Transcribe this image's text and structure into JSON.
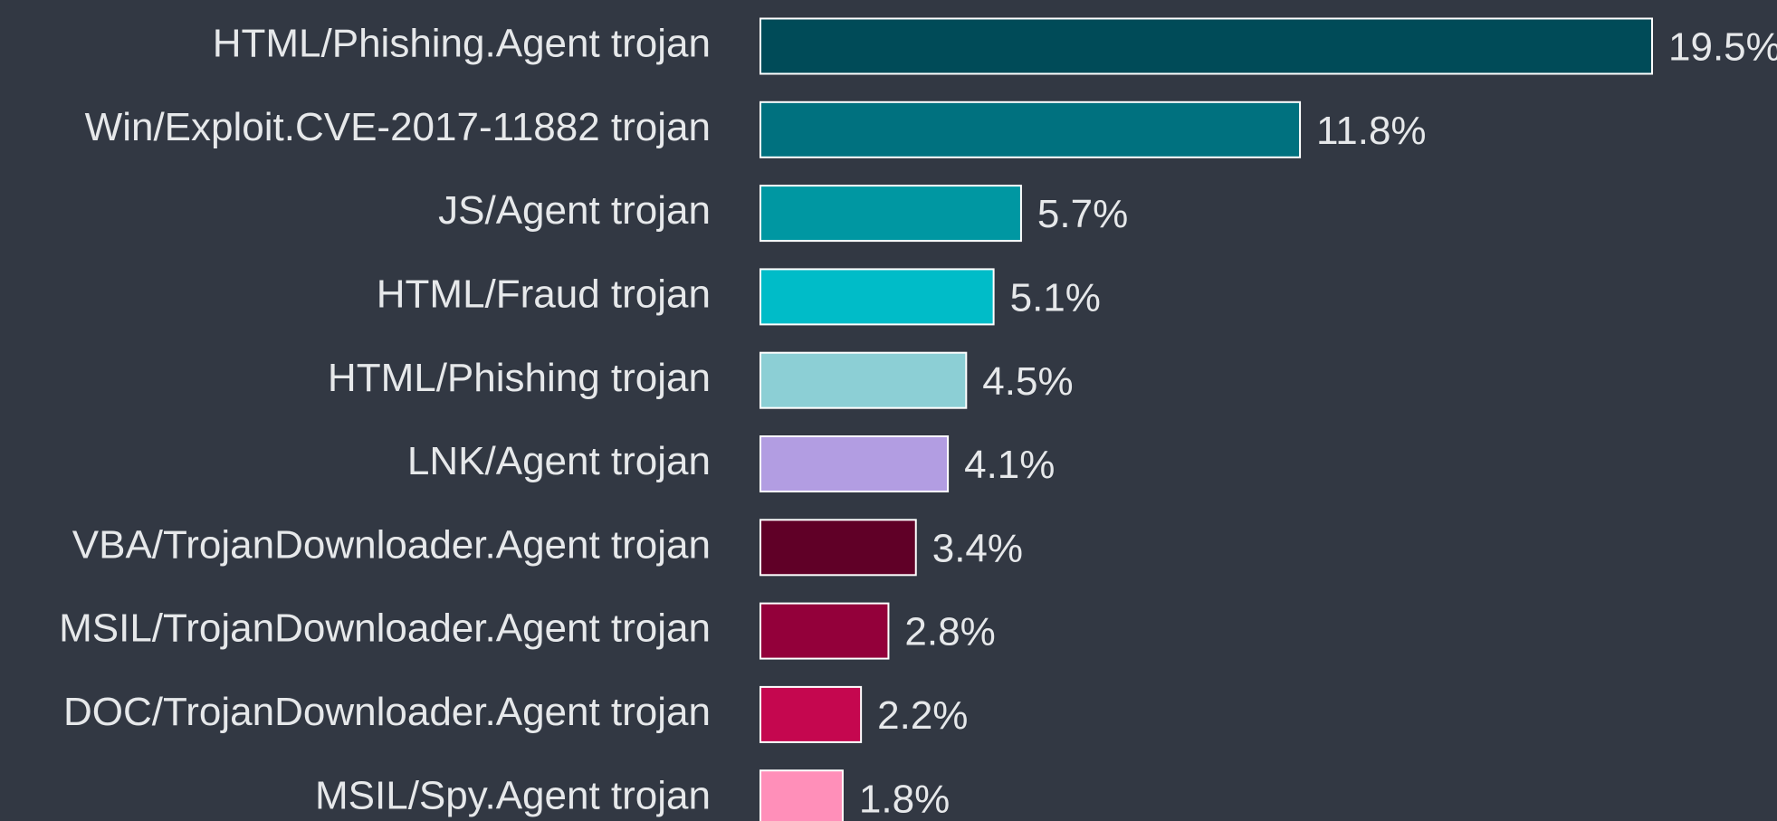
{
  "chart_data": {
    "type": "barh",
    "categories": [
      "HTML/Phishing.Agent trojan",
      "Win/Exploit.CVE-2017-11882 trojan",
      "JS/Agent trojan",
      "HTML/Fraud trojan",
      "HTML/Phishing trojan",
      "LNK/Agent trojan",
      "VBA/TrojanDownloader.Agent trojan",
      "MSIL/TrojanDownloader.Agent trojan",
      "DOC/TrojanDownloader.Agent trojan",
      "MSIL/Spy.Agent trojan"
    ],
    "values": [
      19.5,
      11.8,
      5.7,
      5.1,
      4.5,
      4.1,
      3.4,
      2.8,
      2.2,
      1.8
    ],
    "value_labels": [
      "19.5%",
      "11.8%",
      "5.7%",
      "5.1%",
      "4.5%",
      "4.1%",
      "3.4%",
      "2.8%",
      "2.2%",
      "1.8%"
    ],
    "colors": [
      "#004b58",
      "#00717f",
      "#0097a2",
      "#00bcc8",
      "#8ccfd5",
      "#b29de2",
      "#600027",
      "#93003a",
      "#c5074f",
      "#ff8fb9"
    ]
  }
}
